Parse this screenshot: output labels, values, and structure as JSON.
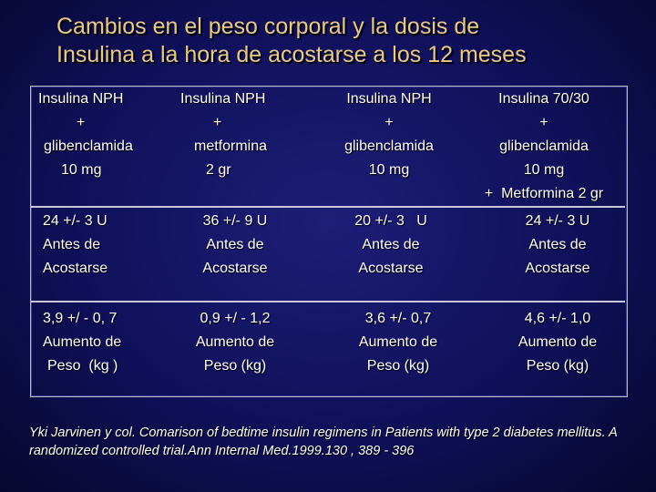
{
  "title": {
    "line1": "Cambios en el peso corporal y la dosis de",
    "line2": "Insulina a la hora de acostarse a los 12 meses"
  },
  "table": {
    "headers": [
      [
        "Insulina NPH",
        "+",
        "glibenclamida",
        "10 mg"
      ],
      [
        "Insulina NPH",
        "+",
        "metformina",
        "2 gr"
      ],
      [
        "Insulina NPH",
        "+",
        "glibenclamida",
        "10 mg"
      ],
      [
        "Insulina 70/30",
        "+",
        "glibenclamida",
        "10 mg",
        "+  Metformina 2 gr"
      ]
    ],
    "dose_row": [
      [
        "24 +/- 3 U",
        "Antes de",
        "Acostarse"
      ],
      [
        "36 +/- 9 U",
        "Antes de",
        "Acostarse"
      ],
      [
        "20 +/- 3   U",
        "Antes de",
        "Acostarse"
      ],
      [
        "24 +/- 3 U",
        "Antes de",
        "Acostarse"
      ]
    ],
    "weight_row": [
      [
        "3,9 +/ - 0, 7",
        "Aumento de",
        "Peso  (kg )"
      ],
      [
        "0,9 +/ - 1,2",
        "Aumento de",
        "Peso (kg)"
      ],
      [
        "3,6 +/- 0,7",
        "Aumento de",
        "Peso (kg)"
      ],
      [
        "4,6 +/- 1,0",
        "Aumento de",
        "Peso (kg)"
      ]
    ]
  },
  "citation": "Yki Jarvinen y col. Comarison of bedtime insulin regimens in Patients with type 2 diabetes mellitus. A randomized controlled trial.Ann Internal Med.1999.130 , 389 - 396"
}
